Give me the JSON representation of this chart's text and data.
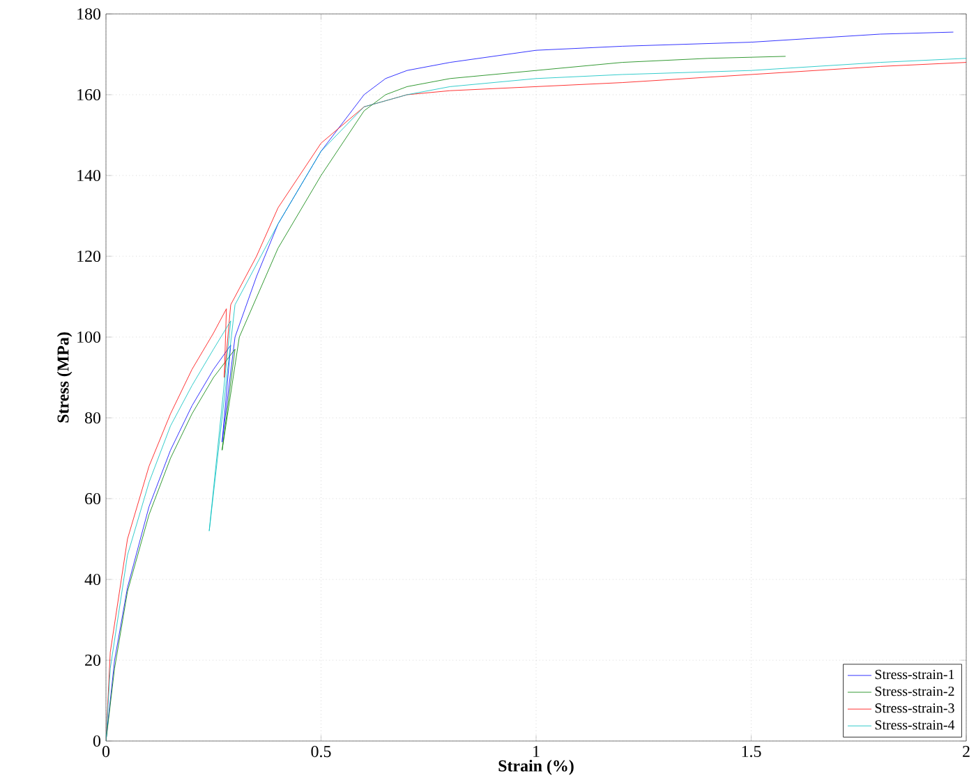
{
  "chart_data": {
    "type": "line",
    "xlabel": "Strain (%)",
    "ylabel": "Stress (MPa)",
    "xlim": [
      0,
      2
    ],
    "ylim": [
      0,
      180
    ],
    "xticks": [
      0,
      0.5,
      1,
      1.5,
      2
    ],
    "yticks": [
      0,
      20,
      40,
      60,
      80,
      100,
      120,
      140,
      160,
      180
    ],
    "grid": true,
    "legend": "bottom right",
    "line_style": "solid",
    "marker": "none",
    "series": [
      {
        "name": "Stress-strain-1",
        "color": "#0000ff",
        "x": [
          0,
          0.02,
          0.05,
          0.1,
          0.15,
          0.2,
          0.25,
          0.29,
          0.27,
          0.3,
          0.35,
          0.4,
          0.5,
          0.6,
          0.65,
          0.7,
          0.8,
          1.0,
          1.2,
          1.5,
          1.8,
          1.97
        ],
        "values": [
          0,
          20,
          38,
          58,
          72,
          83,
          92,
          98,
          74,
          100,
          115,
          128,
          146,
          160,
          164,
          166,
          168,
          171,
          172,
          173,
          175,
          175.5
        ]
      },
      {
        "name": "Stress-strain-2",
        "color": "#008000",
        "x": [
          0,
          0.02,
          0.05,
          0.1,
          0.15,
          0.2,
          0.25,
          0.3,
          0.27,
          0.31,
          0.4,
          0.5,
          0.6,
          0.65,
          0.7,
          0.8,
          1.0,
          1.2,
          1.4,
          1.58
        ],
        "values": [
          0,
          18,
          37,
          56,
          70,
          81,
          90,
          97,
          72,
          100,
          122,
          140,
          156,
          160,
          162,
          164,
          166,
          168,
          169,
          169.5
        ]
      },
      {
        "name": "Stress-strain-3",
        "color": "#ff0000",
        "x": [
          0,
          0.01,
          0.05,
          0.1,
          0.15,
          0.2,
          0.25,
          0.28,
          0.275,
          0.29,
          0.35,
          0.4,
          0.5,
          0.6,
          0.7,
          0.8,
          1.0,
          1.2,
          1.5,
          1.8,
          2.0
        ],
        "values": [
          0,
          22,
          50,
          68,
          81,
          92,
          101,
          107,
          90,
          108,
          120,
          132,
          148,
          157,
          160,
          161,
          162,
          163,
          165,
          167,
          168
        ]
      },
      {
        "name": "Stress-strain-4",
        "color": "#00bfbf",
        "x": [
          0,
          0.01,
          0.05,
          0.1,
          0.15,
          0.2,
          0.25,
          0.29,
          0.24,
          0.3,
          0.4,
          0.5,
          0.6,
          0.7,
          0.8,
          1.0,
          1.2,
          1.5,
          1.8,
          2.0
        ],
        "values": [
          0,
          18,
          46,
          64,
          78,
          88,
          97,
          104,
          52,
          108,
          128,
          146,
          157,
          160,
          162,
          164,
          165,
          166,
          168,
          169
        ]
      }
    ]
  }
}
